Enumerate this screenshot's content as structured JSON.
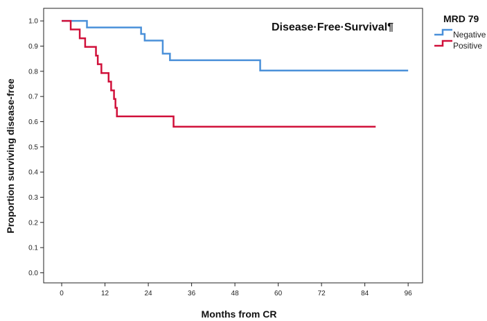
{
  "chart_data": {
    "type": "line",
    "step": true,
    "title": "Disease·Free·Survival¶",
    "xlabel": "Months from CR",
    "ylabel": "Proportion surviving disease-free",
    "xlim": [
      -5,
      100
    ],
    "ylim": [
      -0.04,
      1.05
    ],
    "xticks": [
      0,
      12,
      24,
      36,
      48,
      60,
      72,
      84,
      96
    ],
    "xtick_labels": [
      "0",
      "12",
      "24",
      "36",
      "48",
      "60",
      "72",
      "84",
      "96"
    ],
    "yticks": [
      0.0,
      0.1,
      0.2,
      0.3,
      0.4,
      0.5,
      0.6,
      0.7,
      0.8,
      0.9,
      1.0
    ],
    "ytick_labels": [
      "0.0",
      "0.1",
      "0.2",
      "0.3",
      "0.4",
      "0.5",
      "0.6",
      "0.7",
      "0.8",
      "0.9",
      "1.0"
    ],
    "grid": false,
    "legend": {
      "title": "MRD 79",
      "position": "top-right"
    },
    "series": [
      {
        "name": "Negative",
        "color": "#4a90d9",
        "x": [
          0,
          7,
          22,
          23,
          28,
          30,
          55,
          96
        ],
        "y": [
          1.0,
          0.974,
          0.948,
          0.922,
          0.87,
          0.844,
          0.803,
          0.803
        ]
      },
      {
        "name": "Positive",
        "color": "#d0103a",
        "x": [
          0,
          2.5,
          5,
          6.5,
          9.5,
          10,
          11,
          13,
          13.7,
          14.5,
          14.9,
          15.3,
          31,
          87
        ],
        "y": [
          1.0,
          0.966,
          0.931,
          0.897,
          0.862,
          0.828,
          0.793,
          0.759,
          0.724,
          0.69,
          0.655,
          0.621,
          0.58,
          0.58
        ]
      }
    ]
  }
}
